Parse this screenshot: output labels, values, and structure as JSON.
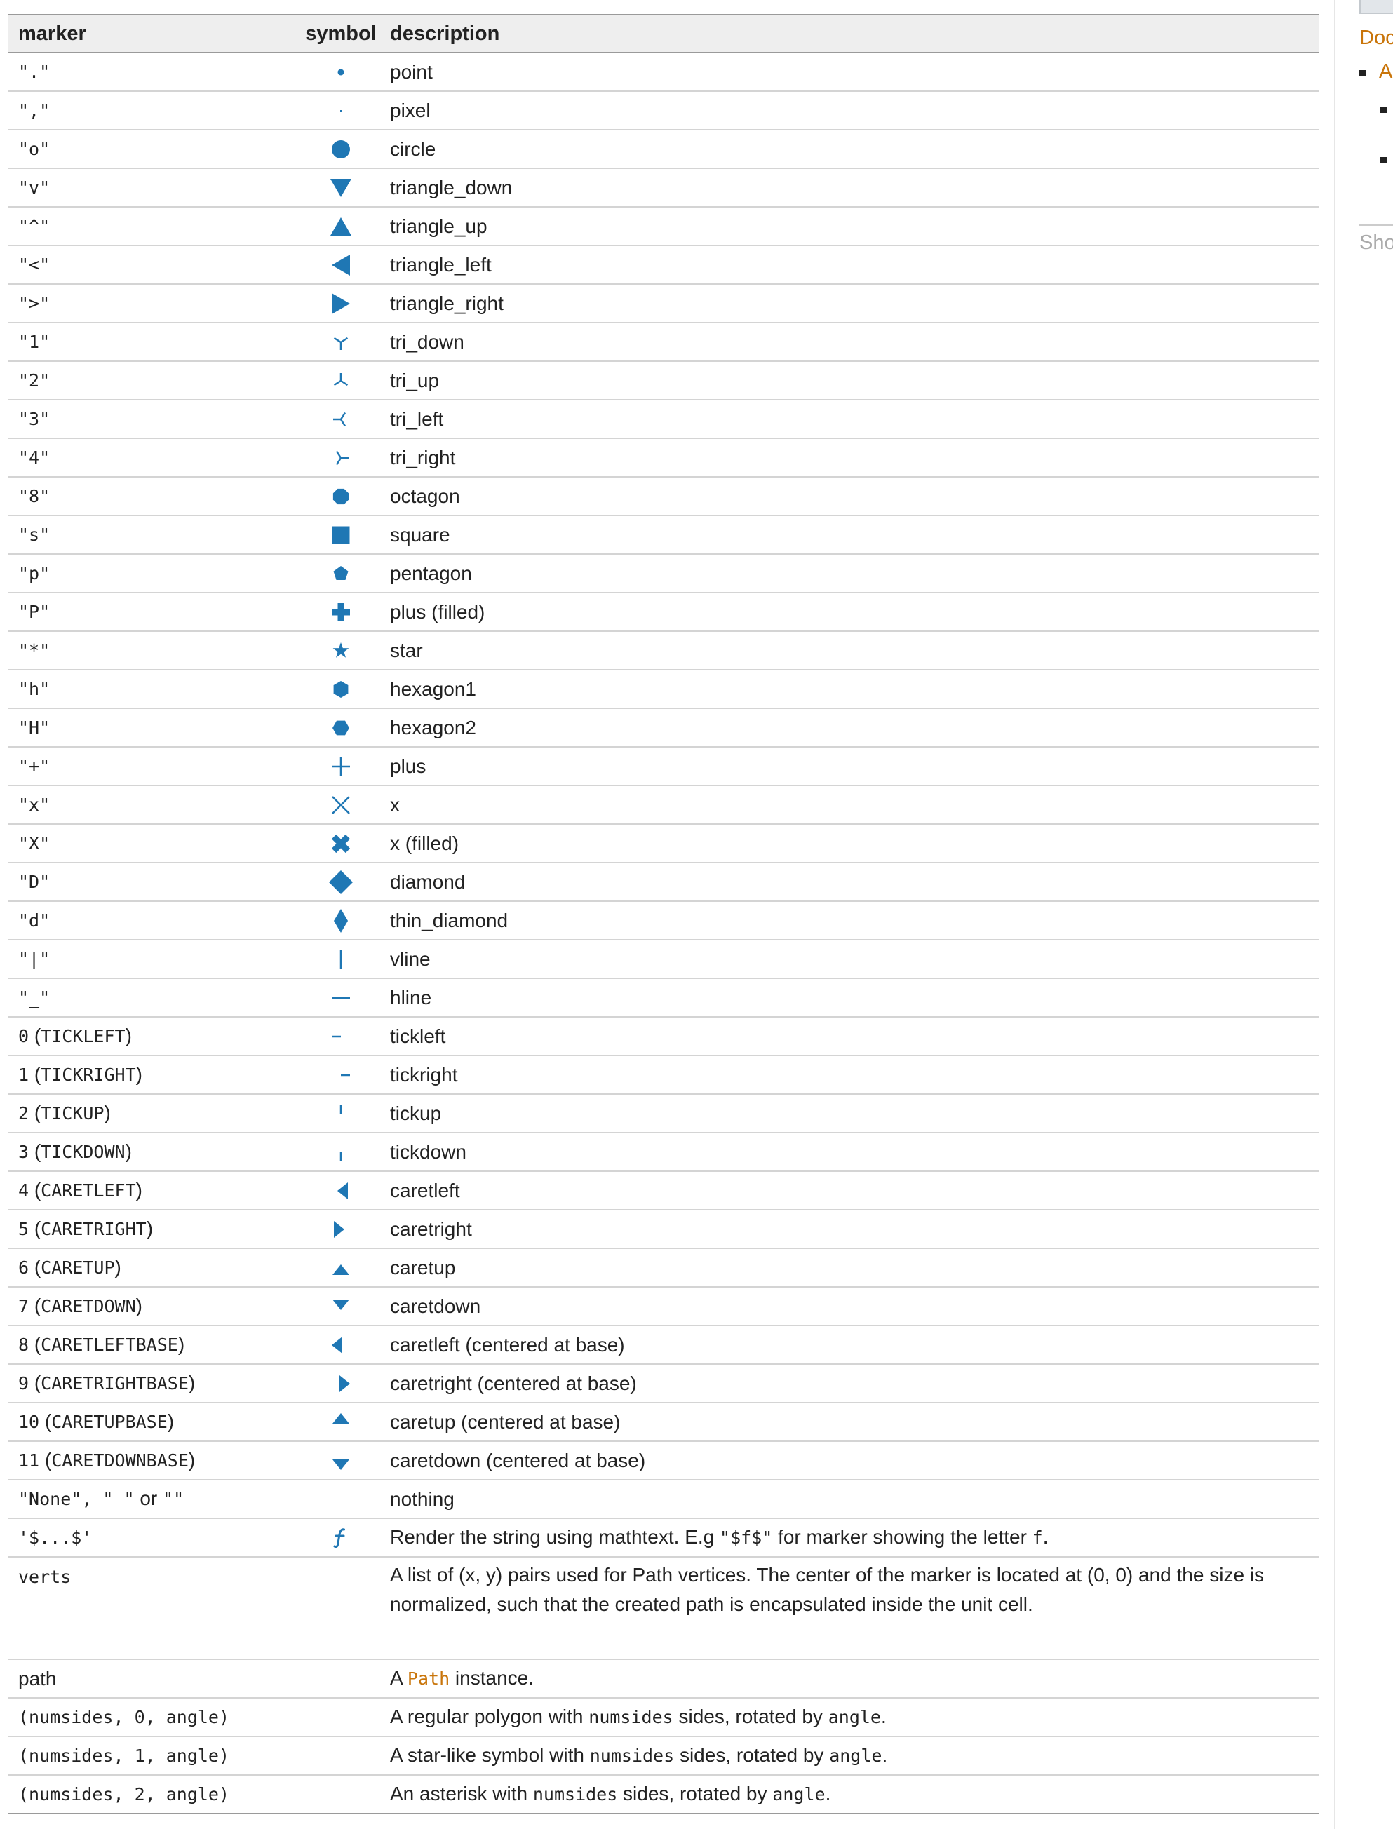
{
  "colors": {
    "accent": "#1f77b4",
    "link": "#c9750a"
  },
  "table": {
    "headers": {
      "marker": "marker",
      "symbol": "symbol",
      "description": "description"
    },
    "rows": [
      {
        "marker": "\".\"",
        "icon": "point-icon",
        "desc": "point"
      },
      {
        "marker": "\",\"",
        "icon": "pixel-icon",
        "desc": "pixel"
      },
      {
        "marker": "\"o\"",
        "icon": "circle-icon",
        "desc": "circle"
      },
      {
        "marker": "\"v\"",
        "icon": "triangle-down-icon",
        "desc": "triangle_down"
      },
      {
        "marker": "\"^\"",
        "icon": "triangle-up-icon",
        "desc": "triangle_up"
      },
      {
        "marker": "\"<\"",
        "icon": "triangle-left-icon",
        "desc": "triangle_left"
      },
      {
        "marker": "\">\"",
        "icon": "triangle-right-icon",
        "desc": "triangle_right"
      },
      {
        "marker": "\"1\"",
        "icon": "tri-down-icon",
        "desc": "tri_down"
      },
      {
        "marker": "\"2\"",
        "icon": "tri-up-icon",
        "desc": "tri_up"
      },
      {
        "marker": "\"3\"",
        "icon": "tri-left-icon",
        "desc": "tri_left"
      },
      {
        "marker": "\"4\"",
        "icon": "tri-right-icon",
        "desc": "tri_right"
      },
      {
        "marker": "\"8\"",
        "icon": "octagon-icon",
        "desc": "octagon"
      },
      {
        "marker": "\"s\"",
        "icon": "square-icon",
        "desc": "square"
      },
      {
        "marker": "\"p\"",
        "icon": "pentagon-icon",
        "desc": "pentagon"
      },
      {
        "marker": "\"P\"",
        "icon": "plus-filled-icon",
        "desc": "plus (filled)"
      },
      {
        "marker": "\"*\"",
        "icon": "star-icon",
        "desc": "star"
      },
      {
        "marker": "\"h\"",
        "icon": "hexagon1-icon",
        "desc": "hexagon1"
      },
      {
        "marker": "\"H\"",
        "icon": "hexagon2-icon",
        "desc": "hexagon2"
      },
      {
        "marker": "\"+\"",
        "icon": "plus-icon",
        "desc": "plus"
      },
      {
        "marker": "\"x\"",
        "icon": "x-icon",
        "desc": "x"
      },
      {
        "marker": "\"X\"",
        "icon": "x-filled-icon",
        "desc": "x (filled)"
      },
      {
        "marker": "\"D\"",
        "icon": "diamond-icon",
        "desc": "diamond"
      },
      {
        "marker": "\"d\"",
        "icon": "thin-diamond-icon",
        "desc": "thin_diamond"
      },
      {
        "marker": "\"|\"",
        "icon": "vline-icon",
        "desc": "vline"
      },
      {
        "marker": "\"_\"",
        "icon": "hline-icon",
        "desc": "hline"
      },
      {
        "code": "0",
        "text": " (",
        "const": "TICKLEFT",
        "end": ")",
        "icon": "tickleft-icon",
        "desc": "tickleft"
      },
      {
        "code": "1",
        "text": " (",
        "const": "TICKRIGHT",
        "end": ")",
        "icon": "tickright-icon",
        "desc": "tickright"
      },
      {
        "code": "2",
        "text": " (",
        "const": "TICKUP",
        "end": ")",
        "icon": "tickup-icon",
        "desc": "tickup"
      },
      {
        "code": "3",
        "text": " (",
        "const": "TICKDOWN",
        "end": ")",
        "icon": "tickdown-icon",
        "desc": "tickdown"
      },
      {
        "code": "4",
        "text": " (",
        "const": "CARETLEFT",
        "end": ")",
        "icon": "caretleft-icon",
        "desc": "caretleft"
      },
      {
        "code": "5",
        "text": " (",
        "const": "CARETRIGHT",
        "end": ")",
        "icon": "caretright-icon",
        "desc": "caretright"
      },
      {
        "code": "6",
        "text": " (",
        "const": "CARETUP",
        "end": ")",
        "icon": "caretup-icon",
        "desc": "caretup"
      },
      {
        "code": "7",
        "text": " (",
        "const": "CARETDOWN",
        "end": ")",
        "icon": "caretdown-icon",
        "desc": "caretdown"
      },
      {
        "code": "8",
        "text": " (",
        "const": "CARETLEFTBASE",
        "end": ")",
        "icon": "caretleft-base-icon",
        "desc": "caretleft (centered at base)"
      },
      {
        "code": "9",
        "text": " (",
        "const": "CARETRIGHTBASE",
        "end": ")",
        "icon": "caretright-base-icon",
        "desc": "caretright (centered at base)"
      },
      {
        "code": "10",
        "text": " (",
        "const": "CARETUPBASE",
        "end": ")",
        "icon": "caretup-base-icon",
        "desc": "caretup (centered at base)"
      },
      {
        "code": "11",
        "text": " (",
        "const": "CARETDOWNBASE",
        "end": ")",
        "icon": "caretdown-base-icon",
        "desc": "caretdown (centered at base)"
      },
      {
        "m1": "\"None\"",
        "m2": ", ",
        "m3": "\" \"",
        "m4": " or ",
        "m5": "\"\"",
        "icon": "",
        "desc": "nothing"
      },
      {
        "marker": "'$...$'",
        "icon": "mathtext-f-icon",
        "d1": "Render the string using mathtext. E.g ",
        "dc1": "\"$f$\"",
        "d2": " for marker showing the letter ",
        "dc2": "f",
        "d3": "."
      },
      {
        "marker": "verts",
        "icon": "",
        "desc": "A list of (x, y) pairs used for Path vertices. The center of the marker is located at (0, 0) and the size is normalized, such that the created path is encapsulated inside the unit cell."
      },
      {
        "markerText": "path",
        "icon": "",
        "d1": "A ",
        "link": "Path",
        "d2": " instance."
      },
      {
        "marker": "(numsides, 0, angle)",
        "icon": "",
        "d1": "A regular polygon with ",
        "dc1": "numsides",
        "d2": " sides, rotated by ",
        "dc2": "angle",
        "d3": "."
      },
      {
        "marker": "(numsides, 1, angle)",
        "icon": "",
        "d1": "A star-like symbol with ",
        "dc1": "numsides",
        "d2": " sides, rotated by ",
        "dc2": "angle",
        "d3": "."
      },
      {
        "marker": "(numsides, 2, angle)",
        "icon": "",
        "d1": "An asterisk with ",
        "dc1": "numsides",
        "d2": " sides, rotated by ",
        "dc2": "angle",
        "d3": "."
      }
    ]
  },
  "sidebar": {
    "doc_label": "Doc",
    "item1_label": "A",
    "show_label": "Sho"
  }
}
